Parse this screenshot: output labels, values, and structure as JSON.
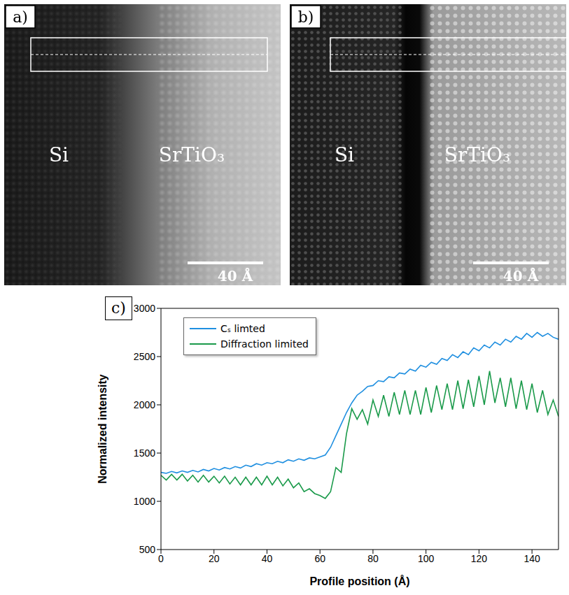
{
  "images": [
    {
      "label": "a)",
      "left_text": "Si",
      "right_text": "SrTiO₃",
      "scale_bar": "40 Å"
    },
    {
      "label": "b)",
      "left_text": "Si",
      "right_text": "SrTiO₃",
      "scale_bar": "40 Å"
    }
  ],
  "chart_data": {
    "type": "line",
    "title": "c)",
    "x_label": "Profile position (Å)",
    "y_label": "Normalized intensity",
    "x": [
      0,
      2,
      4,
      6,
      8,
      10,
      12,
      14,
      16,
      18,
      20,
      22,
      24,
      26,
      28,
      30,
      32,
      34,
      36,
      38,
      40,
      42,
      44,
      46,
      48,
      50,
      52,
      54,
      56,
      58,
      60,
      62,
      64,
      66,
      68,
      70,
      72,
      74,
      76,
      78,
      80,
      82,
      84,
      86,
      88,
      90,
      92,
      94,
      96,
      98,
      100,
      102,
      104,
      106,
      108,
      110,
      112,
      114,
      116,
      118,
      120,
      122,
      124,
      126,
      128,
      130,
      132,
      134,
      136,
      138,
      140,
      142,
      144,
      146,
      148,
      150
    ],
    "series": [
      {
        "name": "Cₛ limted",
        "color": "#1f8fe0",
        "values": [
          1300,
          1290,
          1310,
          1295,
          1315,
          1300,
          1320,
          1305,
          1330,
          1315,
          1340,
          1325,
          1350,
          1335,
          1360,
          1345,
          1375,
          1360,
          1390,
          1375,
          1400,
          1390,
          1415,
          1400,
          1430,
          1415,
          1440,
          1425,
          1450,
          1440,
          1460,
          1480,
          1560,
          1680,
          1800,
          1920,
          2020,
          2100,
          2140,
          2190,
          2200,
          2250,
          2240,
          2290,
          2280,
          2330,
          2320,
          2370,
          2350,
          2410,
          2390,
          2440,
          2420,
          2480,
          2460,
          2520,
          2490,
          2550,
          2520,
          2590,
          2560,
          2620,
          2590,
          2650,
          2620,
          2680,
          2650,
          2710,
          2680,
          2740,
          2700,
          2750,
          2710,
          2740,
          2700,
          2680
        ]
      },
      {
        "name": "Diffraction limited",
        "color": "#1a9a4a",
        "values": [
          1270,
          1220,
          1280,
          1220,
          1280,
          1210,
          1270,
          1200,
          1270,
          1200,
          1260,
          1190,
          1260,
          1180,
          1250,
          1170,
          1250,
          1170,
          1250,
          1170,
          1260,
          1170,
          1250,
          1160,
          1230,
          1140,
          1190,
          1100,
          1130,
          1080,
          1060,
          1030,
          1100,
          1350,
          1300,
          1700,
          1960,
          1850,
          1950,
          1800,
          2050,
          1880,
          2100,
          1880,
          2130,
          1900,
          2150,
          1900,
          2150,
          1900,
          2180,
          1920,
          2200,
          1950,
          2220,
          1950,
          2250,
          1960,
          2260,
          1980,
          2300,
          2000,
          2350,
          2020,
          2280,
          1980,
          2280,
          1960,
          2250,
          1950,
          2220,
          1920,
          2150,
          1900,
          2050,
          1880
        ]
      }
    ],
    "xlim": [
      0,
      150
    ],
    "xticks": [
      0,
      20,
      40,
      60,
      80,
      100,
      120,
      140
    ],
    "ylim": [
      500,
      3000
    ],
    "yticks": [
      500,
      1000,
      1500,
      2000,
      2500,
      3000
    ],
    "legend": "upper left",
    "grid": false
  }
}
